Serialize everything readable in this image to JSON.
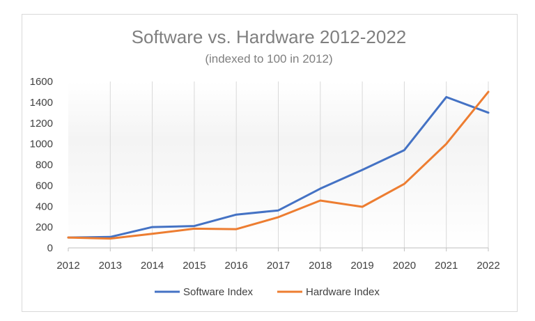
{
  "chart_data": {
    "type": "line",
    "title": "Software vs. Hardware 2012-2022",
    "subtitle": "(indexed to 100 in 2012)",
    "xlabel": "",
    "ylabel": "",
    "categories": [
      "2012",
      "2013",
      "2014",
      "2015",
      "2016",
      "2017",
      "2018",
      "2019",
      "2020",
      "2021",
      "2022"
    ],
    "ylim": [
      0,
      1600
    ],
    "yticks": [
      0,
      200,
      400,
      600,
      800,
      1000,
      1200,
      1400,
      1600
    ],
    "legend_position": "bottom",
    "series": [
      {
        "name": "Software Index",
        "color": "#4472c4",
        "values": [
          100,
          105,
          200,
          210,
          320,
          360,
          570,
          750,
          940,
          1450,
          1300
        ]
      },
      {
        "name": "Hardware Index",
        "color": "#ed7d31",
        "values": [
          100,
          90,
          135,
          185,
          180,
          295,
          455,
          395,
          615,
          1000,
          1500
        ]
      }
    ]
  }
}
